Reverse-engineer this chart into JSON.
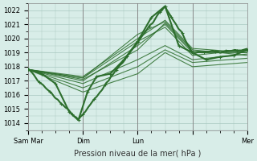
{
  "title": "",
  "xlabel": "Pression niveau de la mer( hPa )",
  "ylabel": "",
  "ylim": [
    1013.5,
    1022.5
  ],
  "xlim": [
    0,
    96
  ],
  "yticks": [
    1014,
    1015,
    1016,
    1017,
    1018,
    1019,
    1020,
    1021,
    1022
  ],
  "xtick_positions": [
    0,
    24,
    48,
    72,
    96
  ],
  "xtick_labels": [
    "Sam Mar",
    "Dim",
    "Lun",
    "",
    "Mer"
  ],
  "bg_color": "#d8ede8",
  "grid_color": "#a8c8c0",
  "line_color": "#2d6e2d",
  "series": [
    [
      0,
      1017.8,
      6,
      1017.5,
      12,
      1016.8,
      18,
      1014.8,
      22,
      1014.2,
      26,
      1016.2,
      30,
      1017.3,
      36,
      1017.5,
      42,
      1018.5,
      48,
      1019.8,
      54,
      1021.5,
      60,
      1022.3,
      66,
      1019.5,
      72,
      1019.0,
      78,
      1018.5,
      84,
      1018.7,
      90,
      1018.8,
      96,
      1019.2
    ],
    [
      0,
      1017.8,
      24,
      1017.2,
      48,
      1020.3,
      60,
      1021.2,
      72,
      1019.2,
      96,
      1018.8
    ],
    [
      0,
      1017.8,
      24,
      1017.0,
      48,
      1019.5,
      60,
      1021.0,
      72,
      1019.0,
      96,
      1019.0
    ],
    [
      0,
      1017.8,
      24,
      1017.2,
      48,
      1019.8,
      60,
      1020.8,
      72,
      1018.8,
      96,
      1019.2
    ],
    [
      0,
      1017.8,
      24,
      1016.8,
      48,
      1018.5,
      60,
      1019.5,
      72,
      1018.5,
      96,
      1018.9
    ],
    [
      0,
      1017.8,
      24,
      1016.5,
      48,
      1018.0,
      60,
      1019.2,
      72,
      1018.3,
      96,
      1018.6
    ],
    [
      0,
      1017.8,
      24,
      1016.2,
      48,
      1017.5,
      60,
      1019.0,
      72,
      1018.0,
      96,
      1018.3
    ],
    [
      0,
      1017.8,
      24,
      1017.3,
      48,
      1020.0,
      60,
      1021.3,
      72,
      1019.3,
      96,
      1019.0
    ],
    [
      0,
      1017.8,
      24,
      1017.1,
      48,
      1019.2,
      60,
      1021.1,
      72,
      1019.1,
      96,
      1019.1
    ]
  ],
  "bold_series_idx": [
    0
  ],
  "marker_series": [
    0
  ]
}
